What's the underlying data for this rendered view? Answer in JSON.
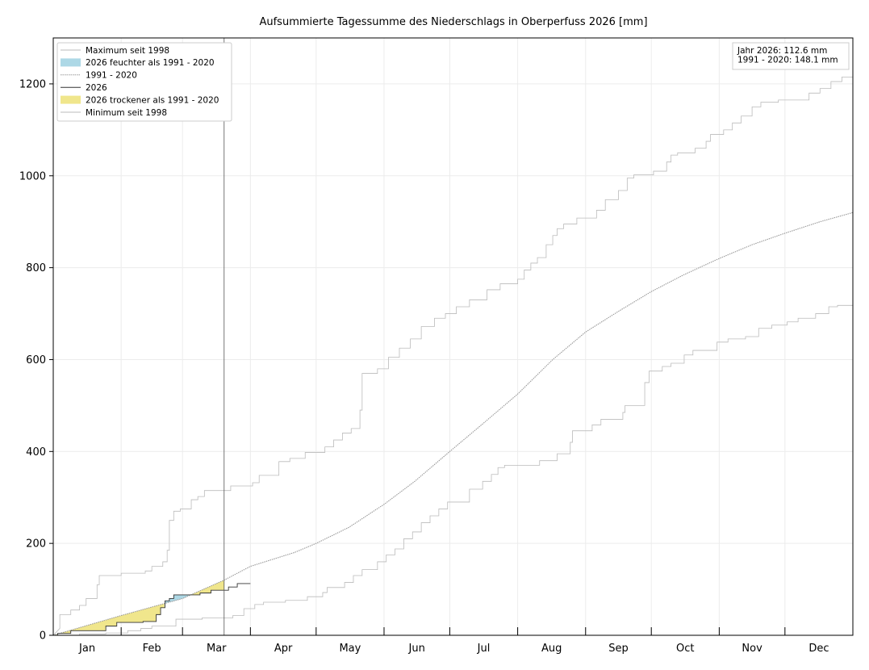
{
  "chart_data": {
    "type": "line",
    "title": "Aufsummierte Tagessumme des Niederschlags in Oberperfuss 2026 [mm]",
    "xlabel": "",
    "ylabel": "",
    "xlim": [
      0,
      365
    ],
    "ylim": [
      0,
      1300
    ],
    "yticks": [
      0,
      200,
      400,
      600,
      800,
      1000,
      1200
    ],
    "month_labels": [
      "Jan",
      "Feb",
      "Mar",
      "Apr",
      "May",
      "Jun",
      "Jul",
      "Aug",
      "Sep",
      "Oct",
      "Nov",
      "Dec"
    ],
    "month_starts": [
      0,
      31,
      59,
      90,
      120,
      151,
      181,
      212,
      243,
      273,
      304,
      334,
      365
    ],
    "current_day": 78,
    "grid": true,
    "legend_position": "top-left",
    "legend": [
      {
        "label": "Maximum seit 1998",
        "kind": "line",
        "color": "#bbbbbb"
      },
      {
        "label": "2026 feuchter als 1991 - 2020",
        "kind": "patch",
        "color": "#add8e6"
      },
      {
        "label": "1991 - 2020",
        "kind": "line",
        "color": "#999999"
      },
      {
        "label": "2026",
        "kind": "line",
        "color": "#333333"
      },
      {
        "label": "2026 trockener als 1991 - 2020",
        "kind": "patch",
        "color": "#f0e68c"
      },
      {
        "label": "Minimum seit 1998",
        "kind": "line",
        "color": "#bbbbbb"
      }
    ],
    "info_box": [
      "Jahr 2026: 112.6 mm",
      "1991 - 2020: 148.1 mm"
    ],
    "series": [
      {
        "name": "Maximum seit 1998",
        "color": "#bbbbbb",
        "points": [
          [
            0,
            0
          ],
          [
            3,
            15
          ],
          [
            3,
            45
          ],
          [
            8,
            45
          ],
          [
            8,
            55
          ],
          [
            12,
            55
          ],
          [
            12,
            65
          ],
          [
            15,
            65
          ],
          [
            15,
            80
          ],
          [
            20,
            80
          ],
          [
            20,
            110
          ],
          [
            21,
            110
          ],
          [
            21,
            130
          ],
          [
            31,
            130
          ],
          [
            31,
            135
          ],
          [
            42,
            135
          ],
          [
            42,
            140
          ],
          [
            45,
            140
          ],
          [
            45,
            150
          ],
          [
            50,
            150
          ],
          [
            50,
            160
          ],
          [
            52,
            160
          ],
          [
            52,
            185
          ],
          [
            53,
            185
          ],
          [
            53,
            250
          ],
          [
            55,
            250
          ],
          [
            55,
            270
          ],
          [
            58,
            270
          ],
          [
            58,
            275
          ],
          [
            63,
            275
          ],
          [
            63,
            295
          ],
          [
            66,
            295
          ],
          [
            66,
            302
          ],
          [
            69,
            302
          ],
          [
            69,
            315
          ],
          [
            81,
            315
          ],
          [
            81,
            325
          ],
          [
            91,
            325
          ],
          [
            91,
            332
          ],
          [
            94,
            332
          ],
          [
            94,
            348
          ],
          [
            103,
            348
          ],
          [
            103,
            378
          ],
          [
            108,
            378
          ],
          [
            108,
            385
          ],
          [
            115,
            385
          ],
          [
            115,
            398
          ],
          [
            124,
            398
          ],
          [
            124,
            410
          ],
          [
            128,
            410
          ],
          [
            128,
            425
          ],
          [
            132,
            425
          ],
          [
            132,
            440
          ],
          [
            136,
            440
          ],
          [
            136,
            450
          ],
          [
            140,
            450
          ],
          [
            140,
            490
          ],
          [
            141,
            490
          ],
          [
            141,
            570
          ],
          [
            148,
            570
          ],
          [
            148,
            580
          ],
          [
            153,
            580
          ],
          [
            153,
            605
          ],
          [
            158,
            605
          ],
          [
            158,
            625
          ],
          [
            163,
            625
          ],
          [
            163,
            645
          ],
          [
            168,
            645
          ],
          [
            168,
            672
          ],
          [
            174,
            672
          ],
          [
            174,
            690
          ],
          [
            179,
            690
          ],
          [
            179,
            700
          ],
          [
            184,
            700
          ],
          [
            184,
            715
          ],
          [
            190,
            715
          ],
          [
            190,
            730
          ],
          [
            198,
            730
          ],
          [
            198,
            752
          ],
          [
            204,
            752
          ],
          [
            204,
            765
          ],
          [
            212,
            765
          ],
          [
            212,
            775
          ],
          [
            215,
            775
          ],
          [
            215,
            795
          ],
          [
            218,
            795
          ],
          [
            218,
            810
          ],
          [
            221,
            810
          ],
          [
            221,
            822
          ],
          [
            225,
            822
          ],
          [
            225,
            850
          ],
          [
            228,
            850
          ],
          [
            228,
            870
          ],
          [
            230,
            870
          ],
          [
            230,
            885
          ],
          [
            233,
            885
          ],
          [
            233,
            895
          ],
          [
            239,
            895
          ],
          [
            239,
            908
          ],
          [
            248,
            908
          ],
          [
            248,
            925
          ],
          [
            252,
            925
          ],
          [
            252,
            948
          ],
          [
            258,
            948
          ],
          [
            258,
            968
          ],
          [
            262,
            968
          ],
          [
            262,
            995
          ],
          [
            265,
            995
          ],
          [
            265,
            1002
          ],
          [
            274,
            1002
          ],
          [
            274,
            1010
          ],
          [
            280,
            1010
          ],
          [
            280,
            1030
          ],
          [
            282,
            1030
          ],
          [
            282,
            1045
          ],
          [
            285,
            1045
          ],
          [
            285,
            1050
          ],
          [
            293,
            1050
          ],
          [
            293,
            1060
          ],
          [
            298,
            1060
          ],
          [
            298,
            1075
          ],
          [
            300,
            1075
          ],
          [
            300,
            1090
          ],
          [
            306,
            1090
          ],
          [
            306,
            1100
          ],
          [
            310,
            1100
          ],
          [
            310,
            1115
          ],
          [
            314,
            1115
          ],
          [
            314,
            1130
          ],
          [
            319,
            1130
          ],
          [
            319,
            1150
          ],
          [
            323,
            1150
          ],
          [
            323,
            1160
          ],
          [
            331,
            1160
          ],
          [
            331,
            1165
          ],
          [
            345,
            1165
          ],
          [
            345,
            1180
          ],
          [
            350,
            1180
          ],
          [
            350,
            1190
          ],
          [
            355,
            1190
          ],
          [
            355,
            1205
          ],
          [
            360,
            1205
          ],
          [
            360,
            1215
          ],
          [
            365,
            1215
          ]
        ]
      },
      {
        "name": "1991 - 2020",
        "color": "#999999",
        "points": [
          [
            0,
            0
          ],
          [
            31,
            43
          ],
          [
            59,
            80
          ],
          [
            78,
            120
          ],
          [
            90,
            150
          ],
          [
            110,
            180
          ],
          [
            120,
            200
          ],
          [
            135,
            235
          ],
          [
            151,
            285
          ],
          [
            165,
            335
          ],
          [
            181,
            400
          ],
          [
            196,
            460
          ],
          [
            212,
            525
          ],
          [
            228,
            600
          ],
          [
            243,
            660
          ],
          [
            258,
            705
          ],
          [
            273,
            748
          ],
          [
            288,
            785
          ],
          [
            304,
            820
          ],
          [
            319,
            850
          ],
          [
            334,
            875
          ],
          [
            350,
            900
          ],
          [
            365,
            920
          ]
        ]
      },
      {
        "name": "2026",
        "color": "#333333",
        "points": [
          [
            0,
            0
          ],
          [
            2,
            0
          ],
          [
            2,
            4
          ],
          [
            8,
            4
          ],
          [
            8,
            10
          ],
          [
            24,
            10
          ],
          [
            24,
            20
          ],
          [
            29,
            20
          ],
          [
            29,
            28
          ],
          [
            41,
            28
          ],
          [
            41,
            30
          ],
          [
            47,
            30
          ],
          [
            47,
            45
          ],
          [
            49,
            45
          ],
          [
            49,
            60
          ],
          [
            51,
            60
          ],
          [
            51,
            75
          ],
          [
            53,
            75
          ],
          [
            53,
            80
          ],
          [
            55,
            80
          ],
          [
            55,
            88
          ],
          [
            67,
            88
          ],
          [
            67,
            92
          ],
          [
            72,
            92
          ],
          [
            72,
            98
          ],
          [
            80,
            98
          ],
          [
            80,
            105
          ],
          [
            84,
            105
          ],
          [
            84,
            112.6
          ],
          [
            90,
            112.6
          ]
        ]
      },
      {
        "name": "Minimum seit 1998",
        "color": "#bbbbbb",
        "points": [
          [
            0,
            0
          ],
          [
            12,
            0
          ],
          [
            12,
            3
          ],
          [
            24,
            3
          ],
          [
            24,
            5
          ],
          [
            34,
            5
          ],
          [
            34,
            10
          ],
          [
            40,
            10
          ],
          [
            40,
            15
          ],
          [
            45,
            15
          ],
          [
            45,
            20
          ],
          [
            56,
            20
          ],
          [
            56,
            35
          ],
          [
            68,
            35
          ],
          [
            68,
            38
          ],
          [
            82,
            38
          ],
          [
            82,
            43
          ],
          [
            87,
            43
          ],
          [
            87,
            58
          ],
          [
            92,
            58
          ],
          [
            92,
            67
          ],
          [
            96,
            67
          ],
          [
            96,
            72
          ],
          [
            106,
            72
          ],
          [
            106,
            76
          ],
          [
            116,
            76
          ],
          [
            116,
            84
          ],
          [
            123,
            84
          ],
          [
            123,
            93
          ],
          [
            125,
            93
          ],
          [
            125,
            104
          ],
          [
            133,
            104
          ],
          [
            133,
            115
          ],
          [
            137,
            115
          ],
          [
            137,
            130
          ],
          [
            141,
            130
          ],
          [
            141,
            143
          ],
          [
            148,
            143
          ],
          [
            148,
            160
          ],
          [
            152,
            160
          ],
          [
            152,
            175
          ],
          [
            156,
            175
          ],
          [
            156,
            188
          ],
          [
            160,
            188
          ],
          [
            160,
            210
          ],
          [
            164,
            210
          ],
          [
            164,
            225
          ],
          [
            168,
            225
          ],
          [
            168,
            245
          ],
          [
            172,
            245
          ],
          [
            172,
            260
          ],
          [
            176,
            260
          ],
          [
            176,
            275
          ],
          [
            180,
            275
          ],
          [
            180,
            290
          ],
          [
            190,
            290
          ],
          [
            190,
            318
          ],
          [
            196,
            318
          ],
          [
            196,
            335
          ],
          [
            200,
            335
          ],
          [
            200,
            350
          ],
          [
            203,
            350
          ],
          [
            203,
            365
          ],
          [
            206,
            365
          ],
          [
            206,
            370
          ],
          [
            222,
            370
          ],
          [
            222,
            380
          ],
          [
            230,
            380
          ],
          [
            230,
            395
          ],
          [
            236,
            395
          ],
          [
            236,
            420
          ],
          [
            237,
            420
          ],
          [
            237,
            445
          ],
          [
            246,
            445
          ],
          [
            246,
            458
          ],
          [
            250,
            458
          ],
          [
            250,
            470
          ],
          [
            260,
            470
          ],
          [
            260,
            485
          ],
          [
            261,
            485
          ],
          [
            261,
            500
          ],
          [
            270,
            500
          ],
          [
            270,
            550
          ],
          [
            272,
            550
          ],
          [
            272,
            575
          ],
          [
            278,
            575
          ],
          [
            278,
            585
          ],
          [
            282,
            585
          ],
          [
            282,
            592
          ],
          [
            288,
            592
          ],
          [
            288,
            610
          ],
          [
            292,
            610
          ],
          [
            292,
            620
          ],
          [
            303,
            620
          ],
          [
            303,
            638
          ],
          [
            308,
            638
          ],
          [
            308,
            645
          ],
          [
            316,
            645
          ],
          [
            316,
            650
          ],
          [
            322,
            650
          ],
          [
            322,
            668
          ],
          [
            328,
            668
          ],
          [
            328,
            675
          ],
          [
            335,
            675
          ],
          [
            335,
            682
          ],
          [
            340,
            682
          ],
          [
            340,
            690
          ],
          [
            348,
            690
          ],
          [
            348,
            700
          ],
          [
            354,
            700
          ],
          [
            354,
            715
          ],
          [
            358,
            715
          ],
          [
            358,
            718
          ],
          [
            365,
            718
          ]
        ]
      }
    ]
  }
}
